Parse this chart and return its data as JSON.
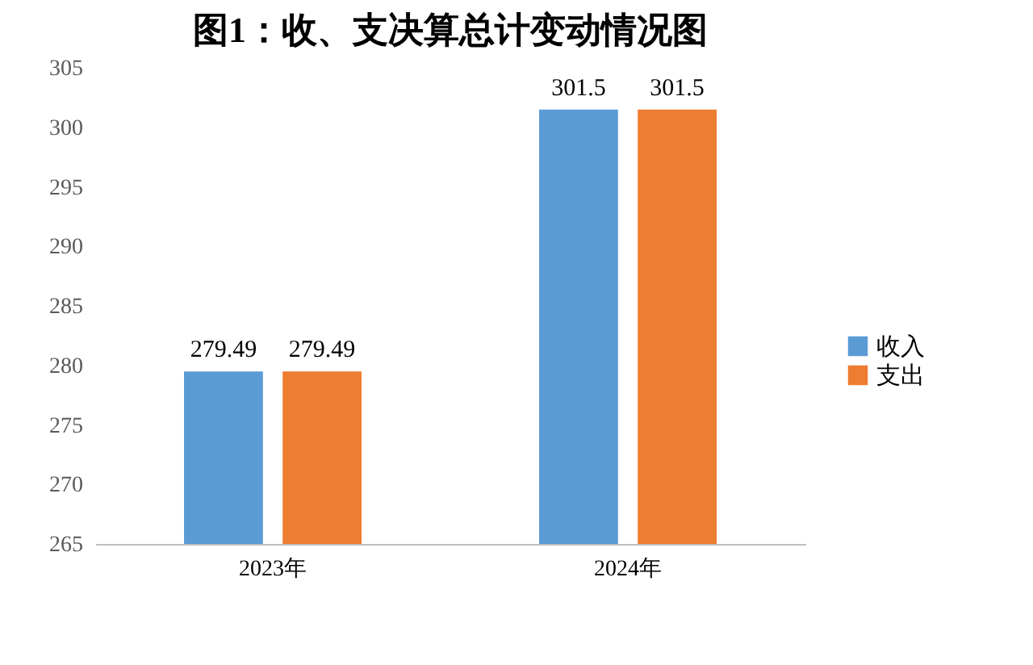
{
  "chart_data": {
    "type": "bar",
    "title": "图1：收、支决算总计变动情况图",
    "categories": [
      "2023年",
      "2024年"
    ],
    "series": [
      {
        "name": "收入",
        "color": "#5b9bd5",
        "values": [
          279.49,
          301.5
        ]
      },
      {
        "name": "支出",
        "color": "#ed7d31",
        "values": [
          279.49,
          301.5
        ]
      }
    ],
    "ylim": [
      265,
      305
    ],
    "yticks": [
      265,
      270,
      275,
      280,
      285,
      290,
      295,
      300,
      305
    ],
    "grid": false,
    "legend": "right",
    "data_labels": true
  }
}
